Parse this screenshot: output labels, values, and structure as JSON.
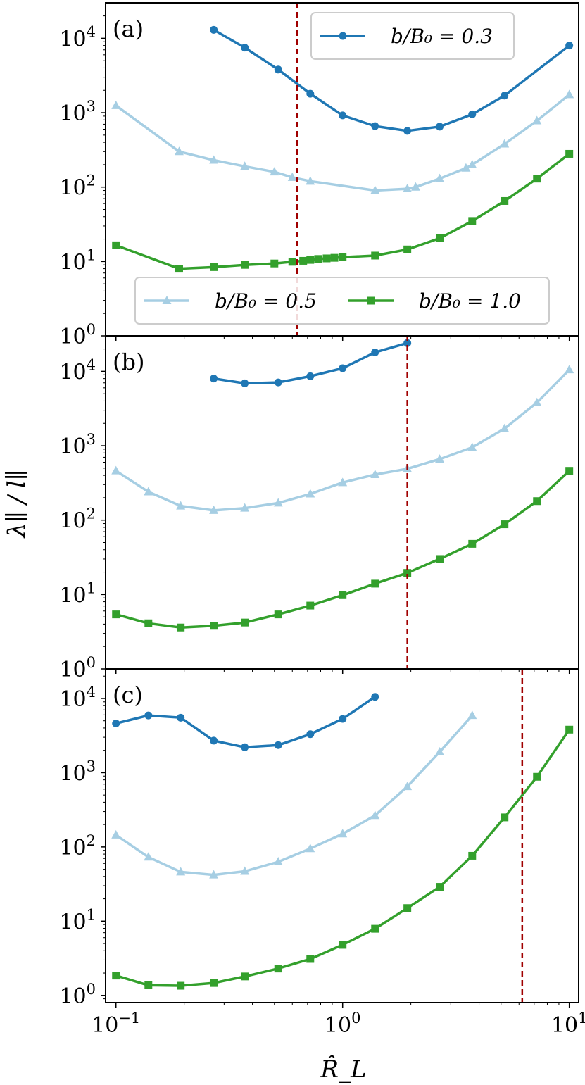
{
  "chart_data": {
    "type": "line",
    "xscale": "log",
    "yscale": "log",
    "xlabel": "R̂_L",
    "ylabel": "λ∥ / l∥",
    "xlim": [
      0.09,
      11
    ],
    "x_ticks": [
      {
        "value": 0.1,
        "base": "10",
        "exp": "−1"
      },
      {
        "value": 1,
        "base": "10",
        "exp": "0"
      },
      {
        "value": 10,
        "base": "10",
        "exp": "1"
      }
    ],
    "y_ticks": [
      {
        "value": 1,
        "base": "10",
        "exp": "0"
      },
      {
        "value": 10,
        "base": "10",
        "exp": "1"
      },
      {
        "value": 100,
        "base": "10",
        "exp": "2"
      },
      {
        "value": 1000,
        "base": "10",
        "exp": "3"
      },
      {
        "value": 10000,
        "base": "10",
        "exp": "4"
      }
    ],
    "legend": {
      "b03": "b/B₀ = 0.3",
      "b05": "b/B₀ = 0.5",
      "b10": "b/B₀ = 1.0"
    },
    "colors": {
      "b03": "#1f77b4",
      "b05": "#a6cee3",
      "b10": "#33a02c",
      "vline": "#a00000"
    },
    "panels": [
      {
        "label": "(a)",
        "ylim": [
          1,
          30000
        ],
        "vline_x": 0.63,
        "series": [
          {
            "key": "b03",
            "marker": "circle",
            "x": [
              0.27,
              0.37,
              0.52,
              0.72,
              1.0,
              1.39,
              1.93,
              2.68,
              3.73,
              5.18,
              10.0
            ],
            "y": [
              13000,
              7500,
              3800,
              1800,
              920,
              660,
              570,
              650,
              950,
              1700,
              8000
            ]
          },
          {
            "key": "b05",
            "marker": "triangle",
            "x": [
              0.1,
              0.19,
              0.27,
              0.37,
              0.5,
              0.6,
              0.72,
              1.39,
              1.93,
              2.1,
              2.68,
              3.5,
              3.73,
              5.18,
              7.2,
              10.0
            ],
            "y": [
              1250,
              300,
              230,
              190,
              160,
              135,
              120,
              90,
              95,
              100,
              130,
              180,
              200,
              380,
              780,
              1750
            ]
          },
          {
            "key": "b10",
            "marker": "square",
            "x": [
              0.1,
              0.19,
              0.27,
              0.37,
              0.5,
              0.6,
              0.67,
              0.72,
              0.78,
              0.85,
              0.92,
              1.0,
              1.39,
              1.93,
              2.68,
              3.73,
              5.18,
              7.2,
              10.0
            ],
            "y": [
              16.5,
              8.0,
              8.4,
              9.0,
              9.4,
              9.9,
              10.2,
              10.5,
              10.8,
              11.0,
              11.2,
              11.4,
              12.0,
              14.5,
              20.5,
              35,
              65,
              130,
              280
            ]
          }
        ]
      },
      {
        "label": "(b)",
        "ylim": [
          1,
          30000
        ],
        "vline_x": 1.93,
        "series": [
          {
            "key": "b03",
            "marker": "circle",
            "x": [
              0.27,
              0.37,
              0.52,
              0.72,
              1.0,
              1.39,
              1.93
            ],
            "y": [
              8000,
              6900,
              7100,
              8600,
              11000,
              18000,
              24000
            ]
          },
          {
            "key": "b05",
            "marker": "triangle",
            "x": [
              0.1,
              0.139,
              0.193,
              0.27,
              0.37,
              0.52,
              0.72,
              1.0,
              1.39,
              1.93,
              2.68,
              3.73,
              5.18,
              7.2,
              10.0
            ],
            "y": [
              460,
              240,
              155,
              135,
              145,
              170,
              225,
              320,
              410,
              490,
              660,
              950,
              1700,
              3800,
              10500
            ]
          },
          {
            "key": "b10",
            "marker": "square",
            "x": [
              0.1,
              0.139,
              0.193,
              0.27,
              0.37,
              0.52,
              0.72,
              1.0,
              1.39,
              1.93,
              2.68,
              3.73,
              5.18,
              7.2,
              10.0
            ],
            "y": [
              5.4,
              4.1,
              3.6,
              3.8,
              4.2,
              5.4,
              7.1,
              9.8,
              14.0,
              19.5,
              30.0,
              48.0,
              88.0,
              180.0,
              460.0
            ]
          }
        ]
      },
      {
        "label": "(c)",
        "ylim": [
          0.8,
          25000
        ],
        "vline_x": 6.2,
        "series": [
          {
            "key": "b03",
            "marker": "circle",
            "x": [
              0.1,
              0.139,
              0.193,
              0.27,
              0.37,
              0.52,
              0.72,
              1.0,
              1.39
            ],
            "y": [
              4600,
              5900,
              5500,
              2700,
              2200,
              2350,
              3300,
              5300,
              10500
            ]
          },
          {
            "key": "b05",
            "marker": "triangle",
            "x": [
              0.1,
              0.139,
              0.193,
              0.27,
              0.37,
              0.52,
              0.72,
              1.0,
              1.39,
              1.93,
              2.68,
              3.73
            ],
            "y": [
              145,
              73,
              46,
              42,
              47,
              63,
              95,
              150,
              265,
              650,
              1900,
              5900
            ]
          },
          {
            "key": "b10",
            "marker": "square",
            "x": [
              0.1,
              0.139,
              0.193,
              0.27,
              0.37,
              0.52,
              0.72,
              1.0,
              1.39,
              1.93,
              2.68,
              3.73,
              5.18,
              7.2,
              10.0
            ],
            "y": [
              1.85,
              1.37,
              1.35,
              1.47,
              1.8,
              2.3,
              3.1,
              4.8,
              7.9,
              15.0,
              29.0,
              76.0,
              250.0,
              880.0,
              3800.0
            ]
          }
        ]
      }
    ]
  }
}
